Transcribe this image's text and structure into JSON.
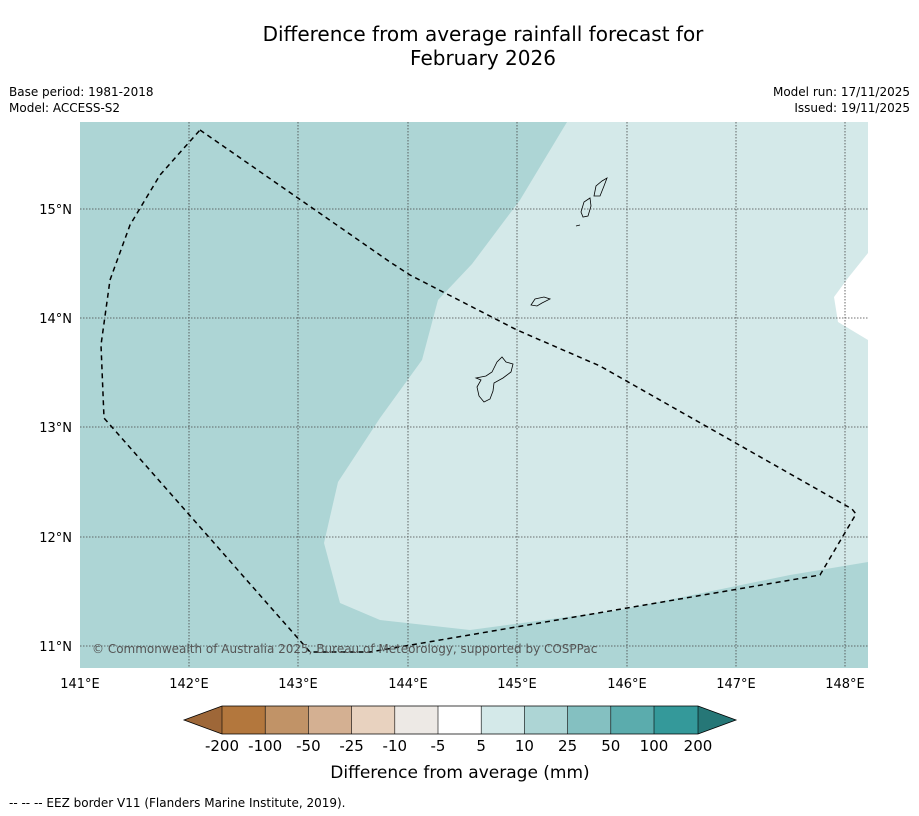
{
  "title": {
    "line1": "Difference from average rainfall forecast for",
    "line2": "February 2026"
  },
  "meta": {
    "base_period": "Base period: 1981-2018",
    "model": "Model: ACCESS-S2",
    "model_run": "Model run: 17/11/2025",
    "issued": "Issued: 19/11/2025"
  },
  "map": {
    "lat_labels": [
      "15°N",
      "14°N",
      "13°N",
      "12°N",
      "11°N"
    ],
    "lon_labels": [
      "141°E",
      "142°E",
      "143°E",
      "144°E",
      "145°E",
      "146°E",
      "147°E",
      "148°E"
    ],
    "copyright": "© Commonwealth of Australia 2025, Bureau of Meteorology, supported by COSPPac",
    "regions": [
      {
        "category": "10 to 25",
        "color": "#add5d5"
      },
      {
        "category": "5 to 10",
        "color": "#d4e9e9"
      },
      {
        "category": "-5 to 5",
        "color": "#ffffff"
      }
    ],
    "eez_color": "#000000"
  },
  "colorbar": {
    "ticks": [
      "-200",
      "-100",
      "-50",
      "-25",
      "-10",
      "-5",
      "5",
      "10",
      "25",
      "50",
      "100",
      "200"
    ],
    "colors": [
      "#9e6738",
      "#b3773d",
      "#c19367",
      "#d4b092",
      "#e8d2bf",
      "#ede9e5",
      "#ffffff",
      "#d4e9e9",
      "#add5d5",
      "#84c0c1",
      "#5bacad",
      "#34999a",
      "#267777"
    ],
    "label": "Difference from average (mm)"
  },
  "footer": "--  --  -- EEZ border V11 (Flanders Marine Institute, 2019)."
}
